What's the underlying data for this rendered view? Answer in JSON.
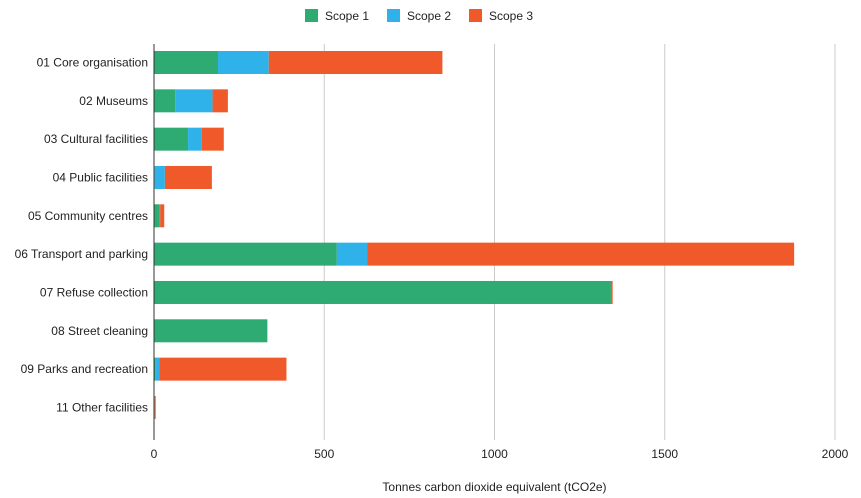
{
  "chart_data": {
    "type": "bar",
    "orientation": "horizontal",
    "stacked": true,
    "categories": [
      "01 Core organisation",
      "02 Museums",
      "03 Cultural facilities",
      "04 Public facilities",
      "05 Community centres",
      "06 Transport and parking",
      "07 Refuse collection",
      "08 Street cleaning",
      "09 Parks and recreation",
      "11 Other facilities"
    ],
    "series": [
      {
        "name": "Scope 1",
        "color": "#2eaa73",
        "values": [
          188,
          62,
          100,
          2,
          16,
          537,
          1342,
          333,
          3,
          2
        ]
      },
      {
        "name": "Scope 2",
        "color": "#2fb2ea",
        "values": [
          149,
          110,
          40,
          30,
          2,
          90,
          0,
          0,
          13,
          0
        ]
      },
      {
        "name": "Scope 3",
        "color": "#f05a2b",
        "values": [
          510,
          45,
          65,
          138,
          12,
          1253,
          5,
          0,
          373,
          3
        ]
      }
    ],
    "xlabel": "Tonnes carbon dioxide equivalent (tCO2e)",
    "ylabel": "",
    "xlim": [
      0,
      2000
    ],
    "xticks": [
      0,
      500,
      1000,
      1500,
      2000
    ],
    "grid": true,
    "legend_position": "top-center"
  }
}
